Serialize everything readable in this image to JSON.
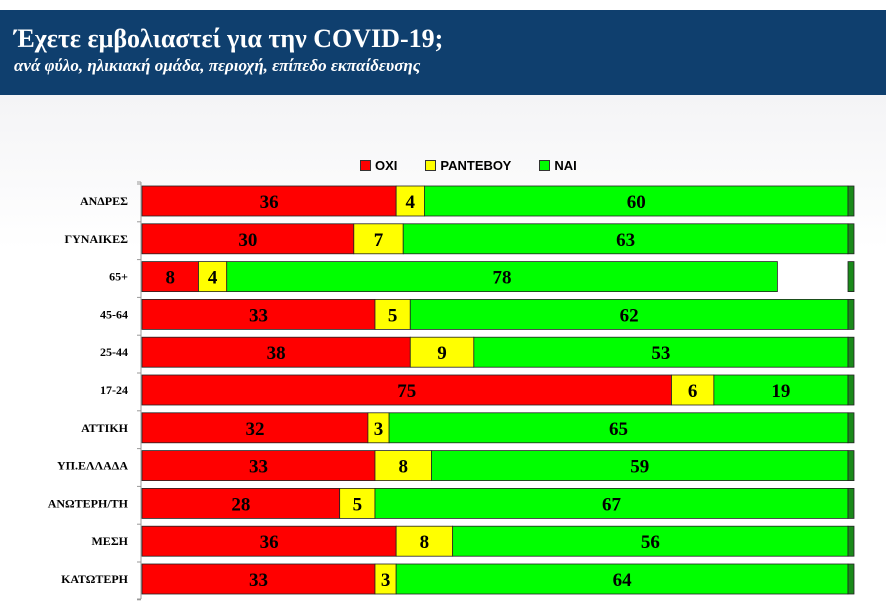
{
  "header": {
    "title": "Έχετε εμβολιαστεί για την COVID-19;",
    "subtitle": "ανά φύλο, ηλικιακή ομάδα, περιοχή, επίπεδο εκπαίδευσης"
  },
  "colors": {
    "header_bg": "#0f3f6e",
    "no": "#ff0000",
    "appointment": "#ffff00",
    "yes": "#00ff00",
    "edge": "#1a8a1a"
  },
  "chart_data": {
    "type": "bar",
    "orientation": "horizontal",
    "stacked": true,
    "xlim": [
      0,
      100
    ],
    "legend_position": "top",
    "categories": [
      "ΑΝΔΡΕΣ",
      "ΓΥΝΑΙΚΕΣ",
      "65+",
      "45-64",
      "25-44",
      "17-24",
      "ΑΤΤΙΚΗ",
      "ΥΠ.ΕΛΛΑΔΑ",
      "ΑΝΩΤΕΡΗ/ΤΗ",
      "ΜΕΣΗ",
      "ΚΑΤΩΤΕΡΗ"
    ],
    "series": [
      {
        "name": "ΟΧΙ",
        "values": [
          36,
          30,
          8,
          33,
          38,
          75,
          32,
          33,
          28,
          36,
          33
        ]
      },
      {
        "name": "ΡΑΝΤΕΒΟΥ",
        "values": [
          4,
          7,
          4,
          5,
          9,
          6,
          3,
          8,
          5,
          8,
          3
        ]
      },
      {
        "name": "ΝΑΙ",
        "values": [
          60,
          63,
          78,
          62,
          53,
          19,
          65,
          59,
          67,
          56,
          64
        ]
      }
    ]
  }
}
